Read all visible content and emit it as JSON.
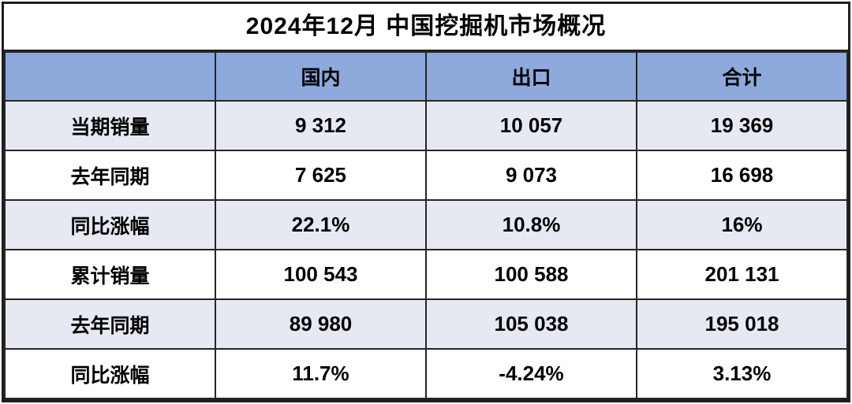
{
  "title": "2024年12月 中国挖掘机市场概况",
  "colors": {
    "header_bg": "#8EA9DB",
    "alt_row_bg": "#E7E9F2",
    "row_bg": "#FFFFFF",
    "border": "#262626",
    "text": "#000000"
  },
  "chart_data": {
    "type": "table",
    "title": "2024年12月 中国挖掘机市场概况",
    "columns": [
      "",
      "国内",
      "出口",
      "合计"
    ],
    "rows": [
      {
        "label": "当期销量",
        "values": [
          "9 312",
          "10 057",
          "19 369"
        ]
      },
      {
        "label": "去年同期",
        "values": [
          "7 625",
          "9 073",
          "16 698"
        ]
      },
      {
        "label": "同比涨幅",
        "values": [
          "22.1%",
          "10.8%",
          "16%"
        ]
      },
      {
        "label": "累计销量",
        "values": [
          "100 543",
          "100 588",
          "201 131"
        ]
      },
      {
        "label": "去年同期",
        "values": [
          "89 980",
          "105 038",
          "195 018"
        ]
      },
      {
        "label": "同比涨幅",
        "values": [
          "11.7%",
          "-4.24%",
          "3.13%"
        ]
      }
    ]
  }
}
